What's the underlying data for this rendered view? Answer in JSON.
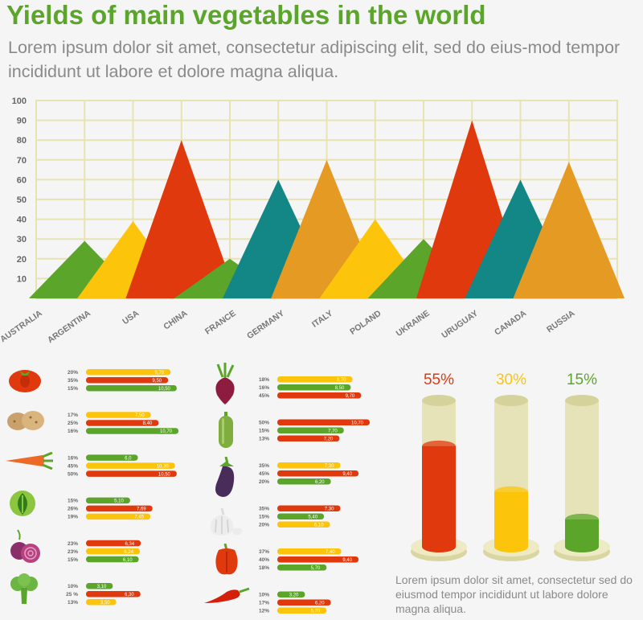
{
  "header": {
    "title": "Yields of main vegetables in the world",
    "subtitle": "Lorem ipsum dolor sit amet, consectetur adipiscing elit, sed do eius-mod tempor incididunt ut labore et dolore magna aliqua."
  },
  "colors": {
    "green": "#5ba52b",
    "yellow": "#fcc40a",
    "red": "#e0390e",
    "teal": "#138686",
    "orange": "#e59a24",
    "grid": "#e8e3b0"
  },
  "chart_data": [
    {
      "type": "area",
      "title": "",
      "ylim": [
        0,
        100
      ],
      "yticks": [
        10,
        20,
        30,
        40,
        50,
        60,
        70,
        80,
        90,
        100
      ],
      "grid": true,
      "categories": [
        "AUSTRALIA",
        "ARGENTINA",
        "USA",
        "CHINA",
        "FRANCE",
        "GERMANY",
        "ITALY",
        "POLAND",
        "UKRAINE",
        "URUGUAY",
        "CANADA",
        "RUSSIA"
      ],
      "peaks": [
        {
          "value": 29,
          "color": "green"
        },
        {
          "value": 39,
          "color": "yellow"
        },
        {
          "value": 80,
          "color": "red"
        },
        {
          "value": 20,
          "color": "green"
        },
        {
          "value": 60,
          "color": "teal"
        },
        {
          "value": 70,
          "color": "orange"
        },
        {
          "value": 40,
          "color": "yellow"
        },
        {
          "value": 30,
          "color": "green"
        },
        {
          "value": 90,
          "color": "red"
        },
        {
          "value": 60,
          "color": "teal"
        },
        {
          "value": 69,
          "color": "orange"
        }
      ]
    },
    {
      "type": "bar",
      "groups": [
        {
          "icon": "tomato-icon",
          "bars": [
            {
              "pct": "20%",
              "label": "9,78",
              "value": 9.78,
              "color": "yellow"
            },
            {
              "pct": "35%",
              "label": "9,50",
              "value": 9.5,
              "color": "red"
            },
            {
              "pct": "15%",
              "label": "10,50",
              "value": 10.5,
              "color": "green"
            }
          ]
        },
        {
          "icon": "potato-icon",
          "bars": [
            {
              "pct": "17%",
              "label": "7,50",
              "value": 7.5,
              "color": "yellow"
            },
            {
              "pct": "25%",
              "label": "8,40",
              "value": 8.4,
              "color": "red"
            },
            {
              "pct": "16%",
              "label": "10,70",
              "value": 10.7,
              "color": "green"
            }
          ]
        },
        {
          "icon": "carrot-icon",
          "bars": [
            {
              "pct": "16%",
              "label": "6,0",
              "value": 6.0,
              "color": "green"
            },
            {
              "pct": "45%",
              "label": "10,30",
              "value": 10.3,
              "color": "yellow"
            },
            {
              "pct": "50%",
              "label": "10,50",
              "value": 10.5,
              "color": "red"
            }
          ]
        },
        {
          "icon": "cabbage-icon",
          "bars": [
            {
              "pct": "15%",
              "label": "5,10",
              "value": 5.1,
              "color": "green"
            },
            {
              "pct": "26%",
              "label": "7,69",
              "value": 7.69,
              "color": "red"
            },
            {
              "pct": "19%",
              "label": "7,45",
              "value": 7.45,
              "color": "yellow"
            }
          ]
        },
        {
          "icon": "onion-icon",
          "bars": [
            {
              "pct": "23%",
              "label": "6,34",
              "value": 6.34,
              "color": "red"
            },
            {
              "pct": "23%",
              "label": "6,24",
              "value": 6.24,
              "color": "yellow"
            },
            {
              "pct": "15%",
              "label": "6,10",
              "value": 6.1,
              "color": "green"
            }
          ]
        },
        {
          "icon": "broccoli-icon",
          "bars": [
            {
              "pct": "10%",
              "label": "3,10",
              "value": 3.1,
              "color": "green"
            },
            {
              "pct": "25 %",
              "label": "6,30",
              "value": 6.3,
              "color": "red"
            },
            {
              "pct": "13%",
              "label": "3,50",
              "value": 3.5,
              "color": "yellow"
            }
          ]
        },
        {
          "icon": "beet-icon",
          "bars": [
            {
              "pct": "18%",
              "label": "8,70",
              "value": 8.7,
              "color": "yellow"
            },
            {
              "pct": "16%",
              "label": "8,50",
              "value": 8.5,
              "color": "green"
            },
            {
              "pct": "45%",
              "label": "9,70",
              "value": 9.7,
              "color": "red"
            }
          ]
        },
        {
          "icon": "zucchini-icon",
          "bars": [
            {
              "pct": "50%",
              "label": "10,70",
              "value": 10.7,
              "color": "red"
            },
            {
              "pct": "15%",
              "label": "7,70",
              "value": 7.7,
              "color": "green"
            },
            {
              "pct": "13%",
              "label": "7,20",
              "value": 7.2,
              "color": "red"
            }
          ]
        },
        {
          "icon": "eggplant-icon",
          "bars": [
            {
              "pct": "35%",
              "label": "7,30",
              "value": 7.3,
              "color": "yellow"
            },
            {
              "pct": "45%",
              "label": "9,40",
              "value": 9.4,
              "color": "red"
            },
            {
              "pct": "20%",
              "label": "6,20",
              "value": 6.2,
              "color": "green"
            }
          ]
        },
        {
          "icon": "garlic-icon",
          "bars": [
            {
              "pct": "35%",
              "label": "7,30",
              "value": 7.3,
              "color": "red"
            },
            {
              "pct": "15%",
              "label": "5,40",
              "value": 5.4,
              "color": "green"
            },
            {
              "pct": "20%",
              "label": "6,10",
              "value": 6.1,
              "color": "yellow"
            }
          ]
        },
        {
          "icon": "bell-pepper-icon",
          "bars": [
            {
              "pct": "37%",
              "label": "7,40",
              "value": 7.4,
              "color": "yellow"
            },
            {
              "pct": "40%",
              "label": "9,40",
              "value": 9.4,
              "color": "red"
            },
            {
              "pct": "18%",
              "label": "5,70",
              "value": 5.7,
              "color": "green"
            }
          ]
        },
        {
          "icon": "chili-pepper-icon",
          "bars": [
            {
              "pct": "10%",
              "label": "3,20",
              "value": 3.2,
              "color": "green"
            },
            {
              "pct": "17%",
              "label": "6,20",
              "value": 6.2,
              "color": "red"
            },
            {
              "pct": "12%",
              "label": "5,70",
              "value": 5.7,
              "color": "yellow"
            }
          ]
        }
      ]
    },
    {
      "type": "bar",
      "cylinders": [
        {
          "label": "55%",
          "value": 55,
          "color": "red"
        },
        {
          "label": "30%",
          "value": 30,
          "color": "yellow"
        },
        {
          "label": "15%",
          "value": 15,
          "color": "green"
        }
      ]
    }
  ],
  "footnote": "Lorem ipsum dolor sit amet, consectetur sed do eiusmod tempor incididunt ut labore dolore magna aliqua."
}
